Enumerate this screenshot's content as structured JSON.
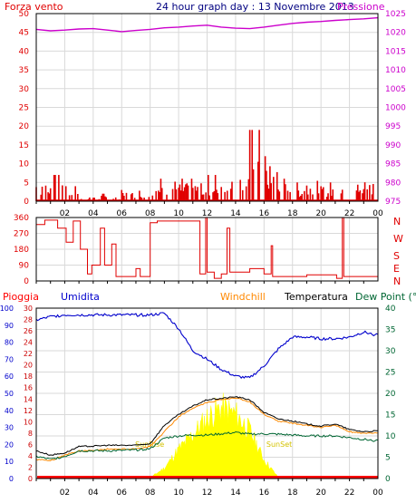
{
  "colors": {
    "wind": "#e00000",
    "wind_dark": "#cc0000",
    "pressure": "#cc00cc",
    "title": "#000080",
    "humidity": "#0000cc",
    "windchill": "#ff8800",
    "temperature": "#000000",
    "dewpoint": "#006633",
    "rain": "#ff0000",
    "sun": "#ffff00",
    "grid": "#d9d9d9",
    "axis": "#000000"
  },
  "chart_data": [
    {
      "type": "bar",
      "title": "24 hour graph day : 13 Novembre 2013",
      "left_label": "Forza vento",
      "right_label": "Pressione",
      "y_left_ticks": [
        "50",
        "45",
        "40",
        "35",
        "30",
        "25",
        "20",
        "15",
        "10",
        "5",
        "0"
      ],
      "y_right_ticks": [
        "1025",
        "1020",
        "1015",
        "1010",
        "1005",
        "1000",
        "995",
        "990",
        "985",
        "980",
        "975"
      ],
      "ylim_left": [
        0,
        50
      ],
      "ylim_right": [
        975,
        1025
      ],
      "x_ticks": [
        "02",
        "04",
        "06",
        "08",
        "10",
        "12",
        "14",
        "16",
        "18",
        "20",
        "22",
        "00"
      ],
      "grid": true,
      "pressure_hourly": [
        1020.8,
        1020.4,
        1020.6,
        1020.9,
        1021.0,
        1020.6,
        1020.2,
        1020.5,
        1020.8,
        1021.2,
        1021.4,
        1021.7,
        1021.9,
        1021.4,
        1021.1,
        1021.0,
        1021.4,
        1021.9,
        1022.4,
        1022.7,
        1022.9,
        1023.2,
        1023.4,
        1023.6,
        1023.9
      ],
      "wind_hourly_max": [
        7,
        7,
        4,
        1,
        2,
        1,
        3,
        4,
        6,
        7,
        6,
        6,
        7,
        7,
        8,
        19,
        12,
        6,
        5,
        7,
        5,
        4,
        6,
        7
      ]
    },
    {
      "type": "line",
      "title": "",
      "right_labels": [
        "N",
        "W",
        "S",
        "E",
        "N"
      ],
      "y_ticks": [
        "360",
        "270",
        "180",
        "90",
        "0"
      ],
      "ylim": [
        0,
        360
      ],
      "x_ticks": [
        "02",
        "04",
        "06",
        "08",
        "10",
        "12",
        "14",
        "16",
        "18",
        "20",
        "22",
        "00"
      ],
      "grid": true,
      "direction": [
        [
          0,
          320
        ],
        [
          0.6,
          320
        ],
        [
          0.6,
          345
        ],
        [
          1.5,
          345
        ],
        [
          1.5,
          300
        ],
        [
          2.1,
          300
        ],
        [
          2.1,
          220
        ],
        [
          2.6,
          220
        ],
        [
          2.6,
          340
        ],
        [
          3.1,
          340
        ],
        [
          3.1,
          180
        ],
        [
          3.6,
          180
        ],
        [
          3.6,
          40
        ],
        [
          3.9,
          40
        ],
        [
          3.9,
          90
        ],
        [
          4.5,
          90
        ],
        [
          4.5,
          300
        ],
        [
          4.8,
          300
        ],
        [
          4.8,
          90
        ],
        [
          5.3,
          90
        ],
        [
          5.3,
          210
        ],
        [
          5.6,
          210
        ],
        [
          5.6,
          25
        ],
        [
          7.0,
          25
        ],
        [
          7.0,
          70
        ],
        [
          7.3,
          70
        ],
        [
          7.3,
          25
        ],
        [
          8.0,
          25
        ],
        [
          8.0,
          330
        ],
        [
          8.5,
          330
        ],
        [
          8.5,
          340
        ],
        [
          11.5,
          340
        ],
        [
          11.5,
          40
        ],
        [
          11.9,
          40
        ],
        [
          11.9,
          360
        ],
        [
          12.0,
          360
        ],
        [
          12.0,
          50
        ],
        [
          12.5,
          50
        ],
        [
          12.5,
          15
        ],
        [
          13.0,
          15
        ],
        [
          13.0,
          40
        ],
        [
          13.4,
          40
        ],
        [
          13.4,
          300
        ],
        [
          13.6,
          300
        ],
        [
          13.6,
          50
        ],
        [
          15.0,
          50
        ],
        [
          15.0,
          70
        ],
        [
          16.0,
          70
        ],
        [
          16.0,
          40
        ],
        [
          16.5,
          40
        ],
        [
          16.5,
          200
        ],
        [
          16.6,
          200
        ],
        [
          16.6,
          25
        ],
        [
          19.0,
          25
        ],
        [
          19.0,
          35
        ],
        [
          21.1,
          35
        ],
        [
          21.1,
          15
        ],
        [
          21.5,
          15
        ],
        [
          21.5,
          360
        ],
        [
          21.6,
          360
        ],
        [
          21.6,
          25
        ],
        [
          24,
          25
        ]
      ]
    },
    {
      "type": "line",
      "title": "",
      "series_labels": [
        "Pioggia",
        "Umidita",
        "Windchill",
        "Temperatura",
        "Dew Point (°C"
      ],
      "y_left_pct_ticks": [
        "100",
        "90",
        "80",
        "70",
        "60",
        "50",
        "40",
        "30",
        "20",
        "10",
        "0"
      ],
      "y_left_mm_ticks": [
        "30",
        "28",
        "26",
        "24",
        "22",
        "20",
        "18",
        "16",
        "14",
        "12",
        "10",
        "8",
        "6",
        "4",
        "2",
        "0"
      ],
      "y_right_ticks": [
        "40",
        "35",
        "30",
        "25",
        "20",
        "15",
        "10",
        "5",
        "0"
      ],
      "ylim_pct": [
        0,
        100
      ],
      "ylim_temp": [
        0,
        40
      ],
      "x_ticks": [
        "02",
        "04",
        "06",
        "08",
        "10",
        "12",
        "14",
        "16",
        "18",
        "20",
        "22",
        "00"
      ],
      "annotations": [
        "SunRise",
        "SunSet"
      ],
      "sunrise_hour": 7.2,
      "sunset_hour": 16.8,
      "grid": true,
      "humidity_hourly": [
        93,
        95,
        96,
        96,
        96,
        96,
        96,
        96,
        96,
        97,
        88,
        75,
        70,
        64,
        60,
        59,
        66,
        76,
        83,
        83,
        82,
        82,
        83,
        86,
        84
      ],
      "temperature_hourly": [
        6.5,
        5.5,
        6.0,
        7.5,
        7.6,
        7.8,
        7.8,
        7.8,
        8.2,
        12.5,
        15.0,
        17.0,
        18.5,
        18.8,
        19.2,
        18.5,
        15.5,
        14.0,
        13.5,
        12.8,
        12.3,
        12.8,
        11.5,
        11.0,
        11.2
      ],
      "dewpoint_hourly": [
        5.2,
        4.5,
        5.2,
        6.5,
        6.5,
        6.5,
        6.6,
        6.7,
        7.0,
        9.5,
        10.0,
        10.2,
        10.2,
        10.5,
        10.8,
        10.4,
        10.5,
        10.4,
        10.2,
        10.0,
        10.0,
        10.0,
        9.6,
        9.2,
        8.8
      ],
      "windchill_hourly": [
        4.5,
        4.2,
        5.5,
        6.5,
        6.6,
        6.9,
        6.9,
        7.0,
        7.5,
        11.0,
        14.5,
        16.5,
        17.8,
        18.5,
        19.0,
        18.0,
        15.0,
        13.5,
        13.0,
        12.5,
        12.0,
        12.5,
        11.0,
        10.5,
        10.8
      ],
      "solar_hourly": [
        0,
        0,
        0,
        0,
        0,
        0,
        0,
        0,
        0.2,
        2.5,
        7.0,
        10.5,
        14.5,
        17.0,
        15.5,
        11.5,
        4.5,
        0.3,
        0,
        0,
        0,
        0,
        0,
        0,
        0
      ],
      "rain_hourly": [
        0,
        0,
        0,
        0,
        0,
        0,
        0,
        0,
        0,
        0,
        0,
        0,
        0,
        0,
        0,
        0,
        0,
        0,
        0,
        0,
        0,
        0,
        0,
        0,
        0
      ]
    }
  ]
}
